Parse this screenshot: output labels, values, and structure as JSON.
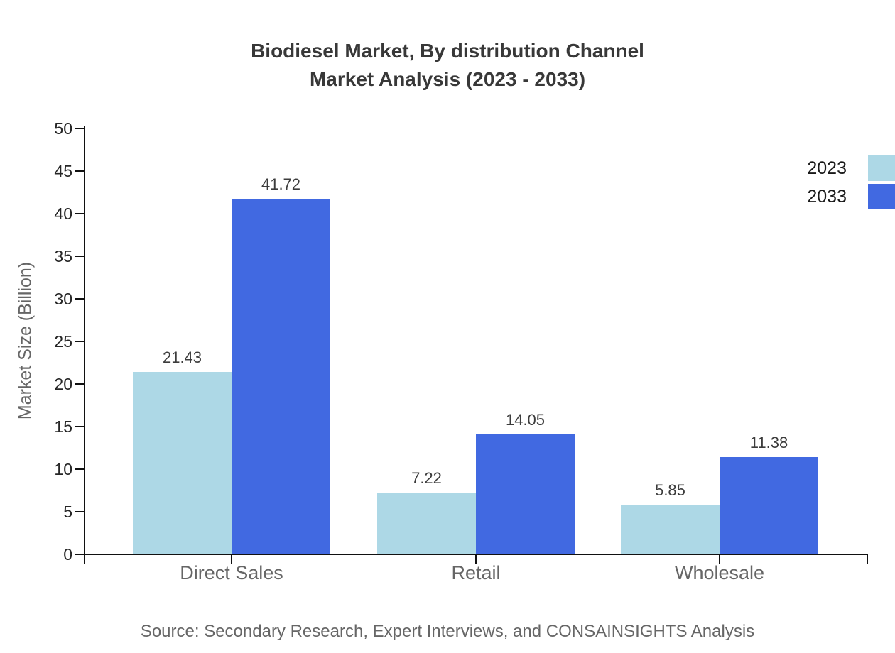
{
  "chart_data": {
    "type": "bar",
    "title_line1": "Biodiesel Market, By distribution Channel",
    "title_line2": "Market Analysis (2023 - 2033)",
    "categories": [
      "Direct Sales",
      "Retail",
      "Wholesale"
    ],
    "series": [
      {
        "name": "2023",
        "color": "#ADD8E6",
        "values": [
          21.43,
          7.22,
          5.85
        ]
      },
      {
        "name": "2033",
        "color": "#4169E1",
        "values": [
          41.72,
          14.05,
          11.38
        ]
      }
    ],
    "xlabel": "",
    "ylabel": "Market Size (Billion)",
    "ylim": [
      0,
      50
    ],
    "yticks": [
      0,
      5,
      10,
      15,
      20,
      25,
      30,
      35,
      40,
      45,
      50
    ],
    "grid": false,
    "legend_position": "right-top",
    "source": "Source: Secondary Research, Expert Interviews, and CONSAINSIGHTS Analysis",
    "colors": {
      "axis": "#111111",
      "tick_label": "#262626",
      "category_label": "#666666",
      "title_text": "#383838",
      "value_label": "#3c3c3c",
      "muted_text": "#666666"
    }
  }
}
